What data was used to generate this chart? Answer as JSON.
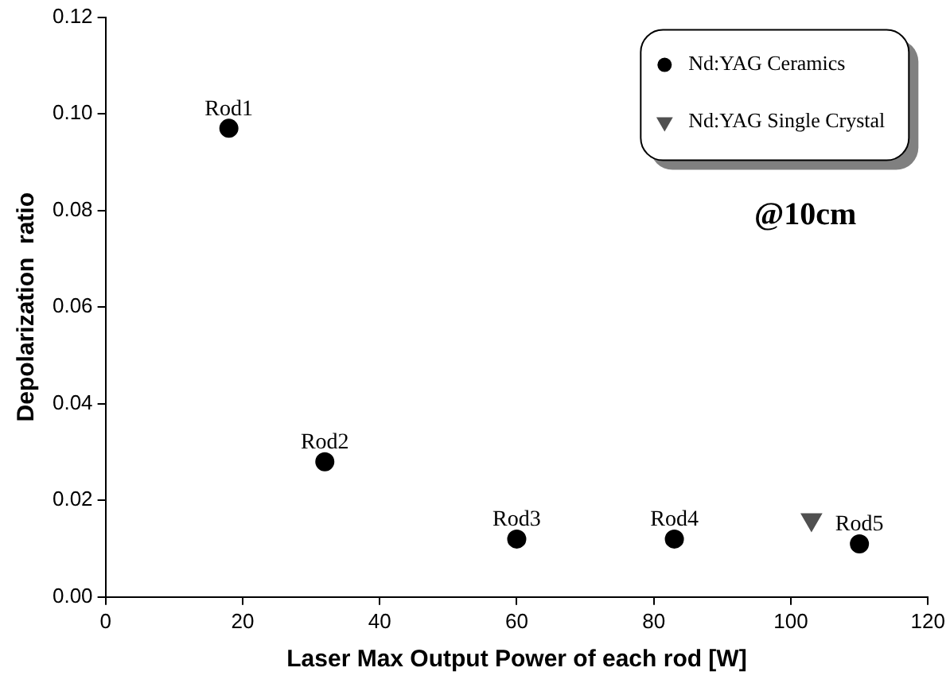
{
  "chart_data": {
    "type": "scatter",
    "xlabel": "Laser Max Output Power of each rod [W]",
    "ylabel": "Depolarization  ratio",
    "series": [
      {
        "name": "Nd:YAG Ceramics",
        "color": "#000000",
        "marker": "circle",
        "x": [
          18,
          32,
          60,
          83,
          110
        ],
        "values": [
          0.097,
          0.028,
          0.012,
          0.012,
          0.011
        ]
      },
      {
        "name": "Nd:YAG Single Crystal",
        "color": "#505050",
        "marker": "triangle",
        "x": [
          103
        ],
        "values": [
          0.016
        ]
      }
    ],
    "xlim": [
      0,
      120
    ],
    "xticks": [
      0,
      20,
      40,
      60,
      80,
      100,
      120
    ],
    "ylim": [
      0,
      0.12
    ],
    "yticks": [
      {
        "value": 0,
        "label": "0.00"
      },
      {
        "value": 0.02,
        "label": "0.02"
      },
      {
        "value": 0.04,
        "label": "0.04"
      },
      {
        "value": 0.06,
        "label": "0.06"
      },
      {
        "value": 0.08,
        "label": "0.08"
      },
      {
        "value": 0.1,
        "label": "0.10"
      },
      {
        "value": 0.12,
        "label": "0.12"
      }
    ],
    "grid": false,
    "legend": "top right",
    "annotations": [
      {
        "text": "Rod1",
        "x": 18,
        "y": 0.097
      },
      {
        "text": "Rod2",
        "x": 32,
        "y": 0.028
      },
      {
        "text": "Rod3",
        "x": 60,
        "y": 0.012
      },
      {
        "text": "Rod4",
        "x": 83,
        "y": 0.012
      },
      {
        "text": "Rod5",
        "x": 110,
        "y": 0.011
      },
      "@10cm"
    ]
  }
}
